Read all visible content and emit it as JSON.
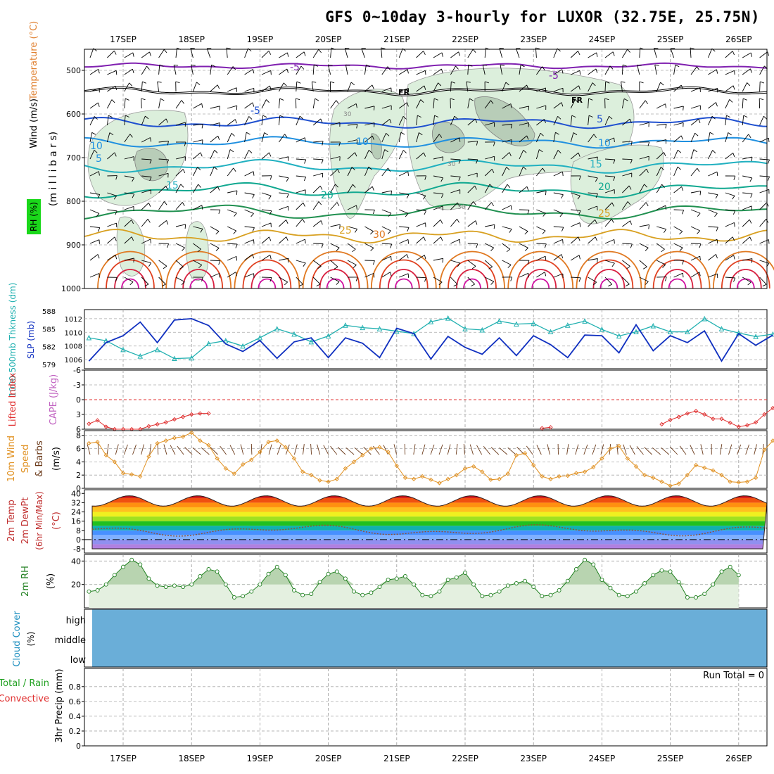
{
  "title": "GFS 0~10day 3-hourly for LUXOR (32.75E, 25.75N)",
  "dates": [
    "17SEP",
    "18SEP",
    "19SEP",
    "20SEP",
    "21SEP",
    "22SEP",
    "23SEP",
    "24SEP",
    "25SEP",
    "26SEP"
  ],
  "colors": {
    "lifted": "#e03030",
    "cape": "#c060c0",
    "slp": "#1030c0",
    "thickness": "#20b0b0",
    "wind10": "#e09020",
    "barb": "#6b3a1a",
    "rh": "#208020",
    "cloud": "#6aaed8",
    "t500": "#8020b0",
    "freeze": "#000000"
  },
  "panels": {
    "upper": {
      "label_wind": "Wind (m/s)",
      "label_temp": "Temperature (°C)",
      "label_rh": "RH (%)",
      "ylabel": "(m i l l i b a r s)",
      "yticks": [
        "500",
        "600",
        "700",
        "800",
        "900",
        "1000"
      ],
      "isotherm_labels": [
        "-5",
        "-5",
        "FR",
        "FR",
        "-5",
        "5",
        "5",
        "10",
        "10",
        "10",
        "15",
        "15",
        "20",
        "20",
        "25",
        "25",
        "30"
      ],
      "rh_labels": [
        "30",
        "30",
        "30"
      ]
    },
    "slp": {
      "label_thk": "1000-500mb Thkness (dm)",
      "label_slp": "SLP (mb)",
      "left_ticks": [
        "588",
        "585",
        "582",
        "579"
      ],
      "right_ticks": [
        "1012",
        "1010",
        "1008",
        "1006"
      ]
    },
    "stab": {
      "label_li": "Lifted Index",
      "label_cape": "CAPE (J/kg)",
      "ticks": [
        "-6",
        "-3",
        "0",
        "3",
        "6"
      ]
    },
    "wind10": {
      "label1": "10m Wind",
      "label2": "Speed",
      "label3": "& Barbs",
      "unit": "(m/s)",
      "ticks": [
        "8",
        "6",
        "4",
        "2",
        "0"
      ]
    },
    "temp": {
      "label1": "2m Temp",
      "label2": "2m DewPt",
      "label3": "(6hr Min/Max)",
      "unit": "(°C)",
      "ticks": [
        "40",
        "32",
        "24",
        "16",
        "8",
        "0",
        "-8"
      ]
    },
    "rh": {
      "label": "2m RH",
      "unit": "(%)",
      "ticks": [
        "40",
        "20"
      ]
    },
    "cloud": {
      "label": "Cloud Cover",
      "unit": "(%)",
      "levels": [
        "high",
        "middle",
        "low"
      ]
    },
    "precip": {
      "label1": "Total / Rain",
      "label2": "Convective",
      "ylabel": "3hr Precip (mm)",
      "ticks": [
        "0.8",
        "0.6",
        "0.4",
        "0.2",
        "0"
      ],
      "run_total": "Run Total = 0"
    }
  },
  "chart_data": [
    {
      "type": "line",
      "title": "SLP (mb)",
      "x_start": "16SEP 12Z",
      "x_step_hours": 6,
      "ylim": [
        1005.5,
        1012.5
      ],
      "series": [
        {
          "name": "SLP (mb)",
          "values": [
            1005.8,
            1008.5,
            1009.5,
            1011.5,
            1008.5,
            1011.8,
            1012,
            1011,
            1008.3,
            1007.2,
            1008.8,
            1006.2,
            1008.6,
            1009.2,
            1006.3,
            1009.2,
            1008.4,
            1006.3,
            1010.6,
            1009.8,
            1006.1,
            1009.4,
            1007.8,
            1006.8,
            1009.2,
            1006.6,
            1009.5,
            1008.2,
            1006.3,
            1009.6,
            1009.5,
            1007.0,
            1011.1,
            1007.3,
            1009.5,
            1008.5,
            1010.2,
            1005.8,
            1009.8,
            1008.1,
            1009.6
          ]
        }
      ]
    },
    {
      "type": "line",
      "title": "1000-500mb Thkness (dm)",
      "x_start": "16SEP 12Z",
      "x_step_hours": 6,
      "ylim": [
        579,
        588
      ],
      "series": [
        {
          "name": "1000-500mb Thkness (dm)",
          "values": [
            583.5,
            583,
            581.5,
            580.4,
            581.5,
            580.0,
            580.1,
            582.5,
            583.0,
            582.1,
            583.5,
            585.0,
            584.1,
            582.8,
            583.8,
            585.6,
            585.2,
            585.0,
            584.6,
            584.2,
            586.2,
            586.8,
            585.0,
            584.8,
            586.3,
            585.8,
            585.9,
            584.5,
            585.6,
            586.3,
            584.9,
            583.8,
            584.5,
            585.5,
            584.5,
            584.5,
            586.7,
            585.0,
            584.3,
            583.7,
            584.1
          ]
        }
      ]
    },
    {
      "type": "line",
      "title": "Lifted Index",
      "x_start": "16SEP 12Z",
      "x_step_hours": 3,
      "ylim": [
        -6,
        6
      ],
      "series": [
        {
          "name": "Lifted Index",
          "values": [
            4.9,
            4.2,
            5.5,
            6,
            6,
            6,
            6,
            5.4,
            5.0,
            4.6,
            4.0,
            3.5,
            3.0,
            2.8,
            2.8,
            null,
            null,
            null,
            null,
            null,
            null,
            null,
            null,
            null,
            null,
            null,
            null,
            null,
            null,
            null,
            null,
            null,
            null,
            null,
            null,
            null,
            null,
            null,
            null,
            null,
            null,
            null,
            null,
            null,
            null,
            null,
            null,
            null,
            null,
            null,
            null,
            null,
            null,
            5.8,
            5.6,
            null,
            null,
            null,
            null,
            null,
            null,
            null,
            null,
            null,
            null,
            null,
            null,
            5.0,
            4.1,
            3.5,
            2.8,
            2.3,
            3.0,
            3.9,
            3.9,
            4.7,
            5.5,
            5.2,
            4.6,
            3.0,
            1.7,
            1.2,
            2.0,
            3.0,
            5.0,
            4.6,
            4.2,
            4.1,
            3.7,
            2.6,
            1.0,
            -0.2,
            1.2,
            3.2,
            4.9,
            5.5,
            5.9,
            5.4,
            5.3,
            5.4,
            5.2
          ]
        }
      ]
    },
    {
      "type": "line",
      "title": "10m Wind Speed (m/s)",
      "x_start": "16SEP 12Z",
      "x_step_hours": 3,
      "ylim": [
        0,
        8.5
      ],
      "series": [
        {
          "name": "Speed",
          "values": [
            6.8,
            7.0,
            5.0,
            4.0,
            2.3,
            2.1,
            1.8,
            4.8,
            6.8,
            7.2,
            7.6,
            7.8,
            8.4,
            7.2,
            6.5,
            4.5,
            3.0,
            2.2,
            3.6,
            4.3,
            5.5,
            7.0,
            7.2,
            6.2,
            4.5,
            2.5,
            2.0,
            1.2,
            1.0,
            1.4,
            3.0,
            4.0,
            5.0,
            6.0,
            6.2,
            5.5,
            3.4,
            1.6,
            1.4,
            1.8,
            1.3,
            0.8,
            1.4,
            2.0,
            3.0,
            3.3,
            2.5,
            1.3,
            1.4,
            2.2,
            5.0,
            5.3,
            3.5,
            1.8,
            1.4,
            1.8,
            1.9,
            2.3,
            2.5,
            3.2,
            4.5,
            6.0,
            6.4,
            4.5,
            3.3,
            2.0,
            1.6,
            1.0,
            0.4,
            0.7,
            2.0,
            3.5,
            3.1,
            2.7,
            2.0,
            1.0,
            0.9,
            1.0,
            1.6,
            5.8,
            7.2,
            7.8,
            7.3,
            6.0,
            4.5,
            3.6,
            3.0,
            2.5,
            3.2,
            3.6,
            5.2,
            7.2,
            6.9,
            6.1,
            4.5,
            3.2,
            2.6,
            2.5,
            2.9,
            3.8,
            4.6,
            5.3,
            5.2,
            4.3,
            3.6,
            2.4,
            1.7,
            1.3,
            1.2,
            2.4
          ]
        }
      ]
    },
    {
      "type": "area",
      "title": "2m RH (%)",
      "x_start": "16SEP 12Z",
      "x_step_hours": 3,
      "ylim": [
        0,
        42
      ],
      "series": [
        {
          "name": "2m RH",
          "values": [
            14,
            15,
            20,
            28,
            35,
            41,
            37,
            25,
            19,
            18,
            19,
            18,
            20,
            27,
            33,
            31,
            20,
            9,
            10,
            14,
            20,
            29,
            35,
            28,
            15,
            11,
            12,
            22,
            29,
            31,
            25,
            14,
            11,
            13,
            18,
            24,
            25,
            27,
            20,
            11,
            10,
            14,
            24,
            26,
            30,
            20,
            10,
            11,
            14,
            19,
            21,
            23,
            18,
            10,
            11,
            15,
            23,
            33,
            41,
            37,
            24,
            17,
            11,
            10,
            14,
            21,
            28,
            32,
            31,
            22,
            9,
            9,
            12,
            20,
            31,
            35,
            28
          ]
        }
      ]
    },
    {
      "type": "table",
      "title": "3hr Precip (mm)",
      "ylim": [
        0,
        1
      ],
      "series": [
        {
          "name": "Total / Rain",
          "values": [
            0,
            0,
            0,
            0,
            0,
            0,
            0,
            0,
            0,
            0
          ]
        },
        {
          "name": "Convective",
          "values": [
            0,
            0,
            0,
            0,
            0,
            0,
            0,
            0,
            0,
            0
          ]
        }
      ]
    }
  ]
}
